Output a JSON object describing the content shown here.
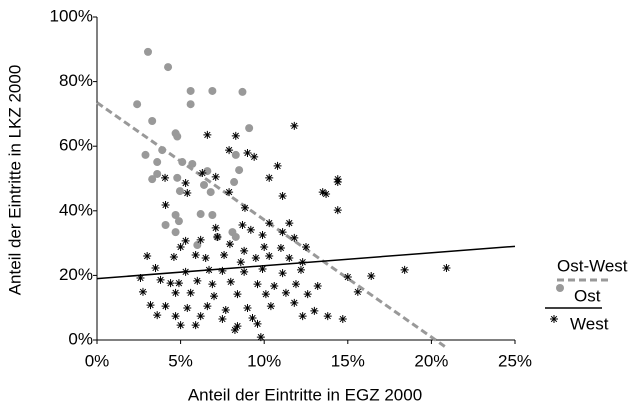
{
  "chart_data": {
    "type": "scatter",
    "x_label": "Anteil der Eintritte in EGZ 2000",
    "y_label": "Anteil der Eintritte in LKZ 2000",
    "xlim": [
      0,
      25
    ],
    "ylim": [
      0,
      100
    ],
    "xticks": [
      {
        "value": 0,
        "label": "0%"
      },
      {
        "value": 5,
        "label": "5%"
      },
      {
        "value": 10,
        "label": "10%"
      },
      {
        "value": 15,
        "label": "15%"
      },
      {
        "value": 20,
        "label": "20%"
      },
      {
        "value": 25,
        "label": "25%"
      }
    ],
    "yticks": [
      {
        "value": 0,
        "label": "0%"
      },
      {
        "value": 20,
        "label": "20%"
      },
      {
        "value": 40,
        "label": "40%"
      },
      {
        "value": 60,
        "label": "60%"
      },
      {
        "value": 80,
        "label": "80%"
      },
      {
        "value": 100,
        "label": "100%"
      }
    ],
    "legend_title": "Ost-West",
    "legend": "right",
    "series": [
      {
        "name": "Ost",
        "color": "#999999",
        "marker": "dot",
        "x": [
          3.05,
          4.25,
          2.4,
          3.3,
          5.6,
          5.6,
          6.9,
          8.7,
          4.7,
          4.8,
          9.1,
          2.9,
          3.9,
          3.6,
          3.6,
          3.3,
          5.1,
          5.7,
          4.8,
          4.96,
          6.6,
          8.3,
          8.5,
          8.2,
          6.4,
          6.8,
          4.7,
          4.9,
          6.2,
          6.9,
          4.7,
          8.1,
          8.3,
          6.0,
          7.2,
          4.1
        ],
        "values": [
          89.2,
          84.5,
          73,
          67.8,
          77.1,
          73,
          77.1,
          76.8,
          64,
          63,
          65.6,
          57.3,
          58.8,
          55.1,
          51.4,
          49.8,
          55.1,
          54.5,
          50.2,
          46.1,
          52.3,
          57.3,
          52.6,
          48.9,
          48,
          45.8,
          38.7,
          36.8,
          39,
          38.7,
          33.4,
          33.4,
          31.9,
          29.4,
          31.9,
          35.6
        ],
        "trend": {
          "x": [
            0,
            20.8
          ],
          "y": [
            73.5,
            -2
          ],
          "color": "#999999",
          "dash": true
        }
      },
      {
        "name": "West",
        "color": "#000000",
        "marker": "star",
        "x": [
          6.6,
          11.8,
          8.3,
          7.9,
          9.0,
          9.4,
          10.3,
          10.8,
          6.3,
          7.1,
          4.07,
          5.3,
          7.9,
          14.4,
          14.4,
          13.5,
          13.7,
          11.1,
          14.4,
          5.4,
          4.1,
          8.85,
          8.7,
          10.3,
          11.5,
          7.1,
          11.1,
          9.2,
          9.9,
          7.2,
          6.2,
          11.8,
          5.3,
          5.0,
          7.95,
          8.8,
          10.0,
          11.0,
          12.5,
          3.0,
          4.6,
          5.9,
          6.5,
          7.6,
          8.6,
          9.5,
          10.3,
          11.5,
          12.3,
          3.5,
          5.3,
          6.7,
          7.5,
          8.8,
          9.9,
          11.1,
          12.2,
          15.0,
          16.4,
          18.4,
          20.9,
          3.8,
          4.9,
          6.0,
          6.9,
          8.0,
          9.6,
          10.6,
          11.9,
          13.2,
          15.6,
          2.75,
          4.7,
          5.6,
          7.0,
          8.4,
          10.1,
          11.3,
          12.6,
          3.2,
          4.1,
          5.4,
          6.6,
          7.7,
          9.0,
          10.4,
          11.8,
          13.0,
          3.6,
          4.7,
          6.2,
          7.5,
          9.3,
          12.3,
          13.8,
          14.7,
          5.9,
          8.4,
          9.6,
          8.25,
          9.8,
          5.0,
          4.4,
          2.6
        ],
        "values": [
          63.5,
          66.3,
          63.2,
          58.8,
          57.9,
          56.7,
          50.2,
          53.9,
          51.7,
          50.5,
          50.2,
          48.6,
          45.8,
          49.8,
          48.9,
          45.8,
          45.2,
          44.6,
          40.2,
          45.5,
          41.8,
          40.9,
          35.6,
          36.2,
          36.2,
          34.7,
          33.4,
          34.1,
          32.5,
          31.9,
          31,
          31.6,
          30.7,
          28.8,
          29.7,
          27.6,
          28.8,
          28.5,
          28.8,
          26,
          25.7,
          26.3,
          25.4,
          26.3,
          24.1,
          25.4,
          26,
          25.4,
          24.1,
          22.3,
          21.1,
          21.7,
          21.4,
          21.1,
          22,
          20.7,
          21.7,
          19.5,
          19.8,
          21.7,
          22.3,
          18.6,
          17.6,
          18.3,
          17.3,
          18,
          17.3,
          16.7,
          17.3,
          16.7,
          14.9,
          14.9,
          14.6,
          14.6,
          13.6,
          14.2,
          14.2,
          14.6,
          14.2,
          10.8,
          10.5,
          9.9,
          10.5,
          9.3,
          9.9,
          10.5,
          11.5,
          9.0,
          7.7,
          7.4,
          7.4,
          6.5,
          6.8,
          7.4,
          7.4,
          6.5,
          4.6,
          4.3,
          5.0,
          3.1,
          0.9,
          4.6,
          17.6,
          19.2
        ],
        "trend": {
          "x": [
            0,
            25
          ],
          "y": [
            19,
            29
          ],
          "color": "#000000",
          "dash": false
        }
      }
    ]
  }
}
